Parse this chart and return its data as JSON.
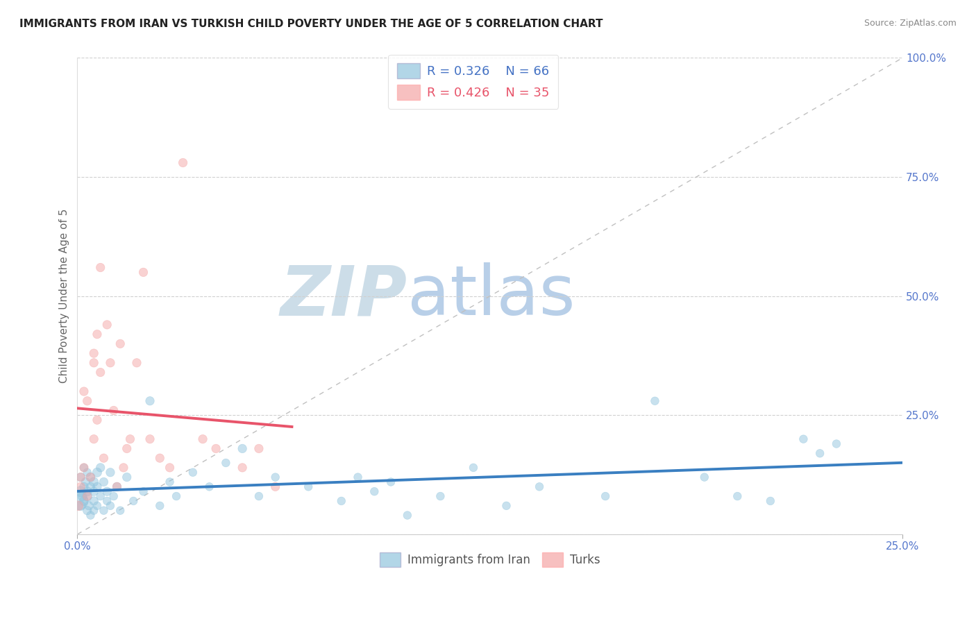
{
  "title": "IMMIGRANTS FROM IRAN VS TURKISH CHILD POVERTY UNDER THE AGE OF 5 CORRELATION CHART",
  "source": "Source: ZipAtlas.com",
  "ylabel_label": "Child Poverty Under the Age of 5",
  "xlim": [
    0.0,
    0.25
  ],
  "ylim": [
    0.0,
    1.0
  ],
  "xticks": [
    0.0,
    0.25
  ],
  "yticks": [
    0.0,
    0.25,
    0.5,
    0.75,
    1.0
  ],
  "blue_color": "#92c5de",
  "pink_color": "#f4a6a6",
  "blue_line_color": "#3a7fc1",
  "pink_line_color": "#e8546a",
  "series1_label": "Immigrants from Iran",
  "series2_label": "Turks",
  "r1": "0.326",
  "n1": "66",
  "r2": "0.426",
  "n2": "35",
  "legend_r1_color": "#4472c4",
  "legend_n1_color": "#4472c4",
  "legend_r2_color": "#e8546a",
  "legend_n2_color": "#e8546a",
  "watermark_zip_color": "#c8d8e8",
  "watermark_atlas_color": "#b8cfe8",
  "iran_x": [
    0.0005,
    0.001,
    0.001,
    0.001,
    0.0015,
    0.002,
    0.002,
    0.002,
    0.0025,
    0.003,
    0.003,
    0.003,
    0.003,
    0.0035,
    0.004,
    0.004,
    0.004,
    0.005,
    0.005,
    0.005,
    0.005,
    0.006,
    0.006,
    0.006,
    0.007,
    0.007,
    0.008,
    0.008,
    0.009,
    0.009,
    0.01,
    0.01,
    0.011,
    0.012,
    0.013,
    0.015,
    0.017,
    0.02,
    0.022,
    0.025,
    0.028,
    0.03,
    0.035,
    0.04,
    0.045,
    0.05,
    0.055,
    0.06,
    0.07,
    0.08,
    0.085,
    0.09,
    0.095,
    0.1,
    0.11,
    0.12,
    0.13,
    0.14,
    0.16,
    0.175,
    0.19,
    0.2,
    0.21,
    0.22,
    0.225,
    0.23
  ],
  "iran_y": [
    0.07,
    0.09,
    0.12,
    0.06,
    0.08,
    0.1,
    0.14,
    0.07,
    0.11,
    0.05,
    0.09,
    0.13,
    0.08,
    0.06,
    0.1,
    0.04,
    0.12,
    0.07,
    0.11,
    0.05,
    0.09,
    0.13,
    0.06,
    0.1,
    0.08,
    0.14,
    0.05,
    0.11,
    0.07,
    0.09,
    0.06,
    0.13,
    0.08,
    0.1,
    0.05,
    0.12,
    0.07,
    0.09,
    0.28,
    0.06,
    0.11,
    0.08,
    0.13,
    0.1,
    0.15,
    0.18,
    0.08,
    0.12,
    0.1,
    0.07,
    0.12,
    0.09,
    0.11,
    0.04,
    0.08,
    0.14,
    0.06,
    0.1,
    0.08,
    0.28,
    0.12,
    0.08,
    0.07,
    0.2,
    0.17,
    0.19
  ],
  "iran_sizes": [
    350,
    120,
    80,
    100,
    90,
    80,
    70,
    90,
    80,
    80,
    90,
    70,
    100,
    80,
    80,
    70,
    90,
    80,
    90,
    70,
    80,
    90,
    70,
    80,
    70,
    80,
    70,
    80,
    70,
    80,
    70,
    80,
    70,
    80,
    70,
    80,
    70,
    70,
    80,
    70,
    70,
    70,
    70,
    70,
    70,
    80,
    70,
    70,
    70,
    70,
    70,
    70,
    70,
    70,
    70,
    70,
    70,
    70,
    70,
    70,
    70,
    70,
    70,
    70,
    70,
    70
  ],
  "turk_x": [
    0.0003,
    0.001,
    0.001,
    0.002,
    0.002,
    0.003,
    0.003,
    0.004,
    0.005,
    0.005,
    0.005,
    0.006,
    0.006,
    0.007,
    0.007,
    0.008,
    0.009,
    0.01,
    0.011,
    0.012,
    0.013,
    0.014,
    0.015,
    0.016,
    0.018,
    0.02,
    0.022,
    0.025,
    0.028,
    0.032,
    0.038,
    0.042,
    0.05,
    0.055,
    0.06
  ],
  "turk_y": [
    0.06,
    0.1,
    0.12,
    0.14,
    0.3,
    0.08,
    0.28,
    0.12,
    0.2,
    0.36,
    0.38,
    0.24,
    0.42,
    0.34,
    0.56,
    0.16,
    0.44,
    0.36,
    0.26,
    0.1,
    0.4,
    0.14,
    0.18,
    0.2,
    0.36,
    0.55,
    0.2,
    0.16,
    0.14,
    0.78,
    0.2,
    0.18,
    0.14,
    0.18,
    0.1
  ],
  "turk_sizes": [
    100,
    80,
    80,
    80,
    80,
    80,
    80,
    80,
    80,
    80,
    80,
    80,
    80,
    80,
    80,
    80,
    80,
    80,
    80,
    80,
    80,
    80,
    80,
    80,
    80,
    80,
    80,
    80,
    80,
    80,
    80,
    80,
    80,
    80,
    80
  ]
}
